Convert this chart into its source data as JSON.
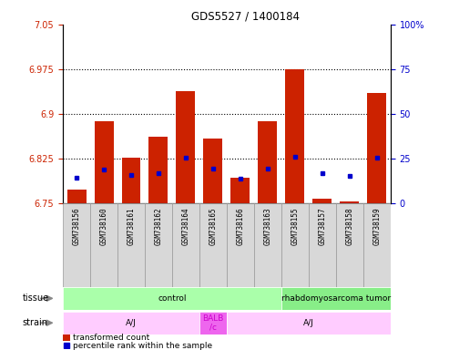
{
  "title": "GDS5527 / 1400184",
  "samples": [
    "GSM738156",
    "GSM738160",
    "GSM738161",
    "GSM738162",
    "GSM738164",
    "GSM738165",
    "GSM738166",
    "GSM738163",
    "GSM738155",
    "GSM738157",
    "GSM738158",
    "GSM738159"
  ],
  "red_values": [
    6.772,
    6.888,
    6.826,
    6.862,
    6.938,
    6.858,
    6.793,
    6.888,
    6.975,
    6.757,
    6.752,
    6.935
  ],
  "blue_values": [
    6.793,
    6.807,
    6.797,
    6.8,
    6.826,
    6.808,
    6.791,
    6.808,
    6.828,
    6.8,
    6.796,
    6.826
  ],
  "base_value": 6.75,
  "ylim_left": [
    6.75,
    7.05
  ],
  "ylim_right": [
    0,
    100
  ],
  "yticks_left": [
    6.75,
    6.825,
    6.9,
    6.975,
    7.05
  ],
  "yticks_right": [
    0,
    25,
    50,
    75,
    100
  ],
  "dotted_lines": [
    6.975,
    6.9,
    6.825
  ],
  "bar_color": "#cc2200",
  "blue_color": "#0000cc",
  "left_label_color": "#cc2200",
  "right_label_color": "#0000cc",
  "tissue_regions": [
    {
      "label": "control",
      "start": 0,
      "end": 8,
      "color": "#aaffaa"
    },
    {
      "label": "rhabdomyosarcoma tumor",
      "start": 8,
      "end": 12,
      "color": "#88ee88"
    }
  ],
  "strain_regions": [
    {
      "label": "A/J",
      "start": 0,
      "end": 5,
      "color": "#ffccff"
    },
    {
      "label": "BALB\n/c",
      "start": 5,
      "end": 6,
      "color": "#ee66ee"
    },
    {
      "label": "A/J",
      "start": 6,
      "end": 12,
      "color": "#ffccff"
    }
  ],
  "xtick_bg_color": "#d8d8d8",
  "xtick_border_color": "#999999"
}
